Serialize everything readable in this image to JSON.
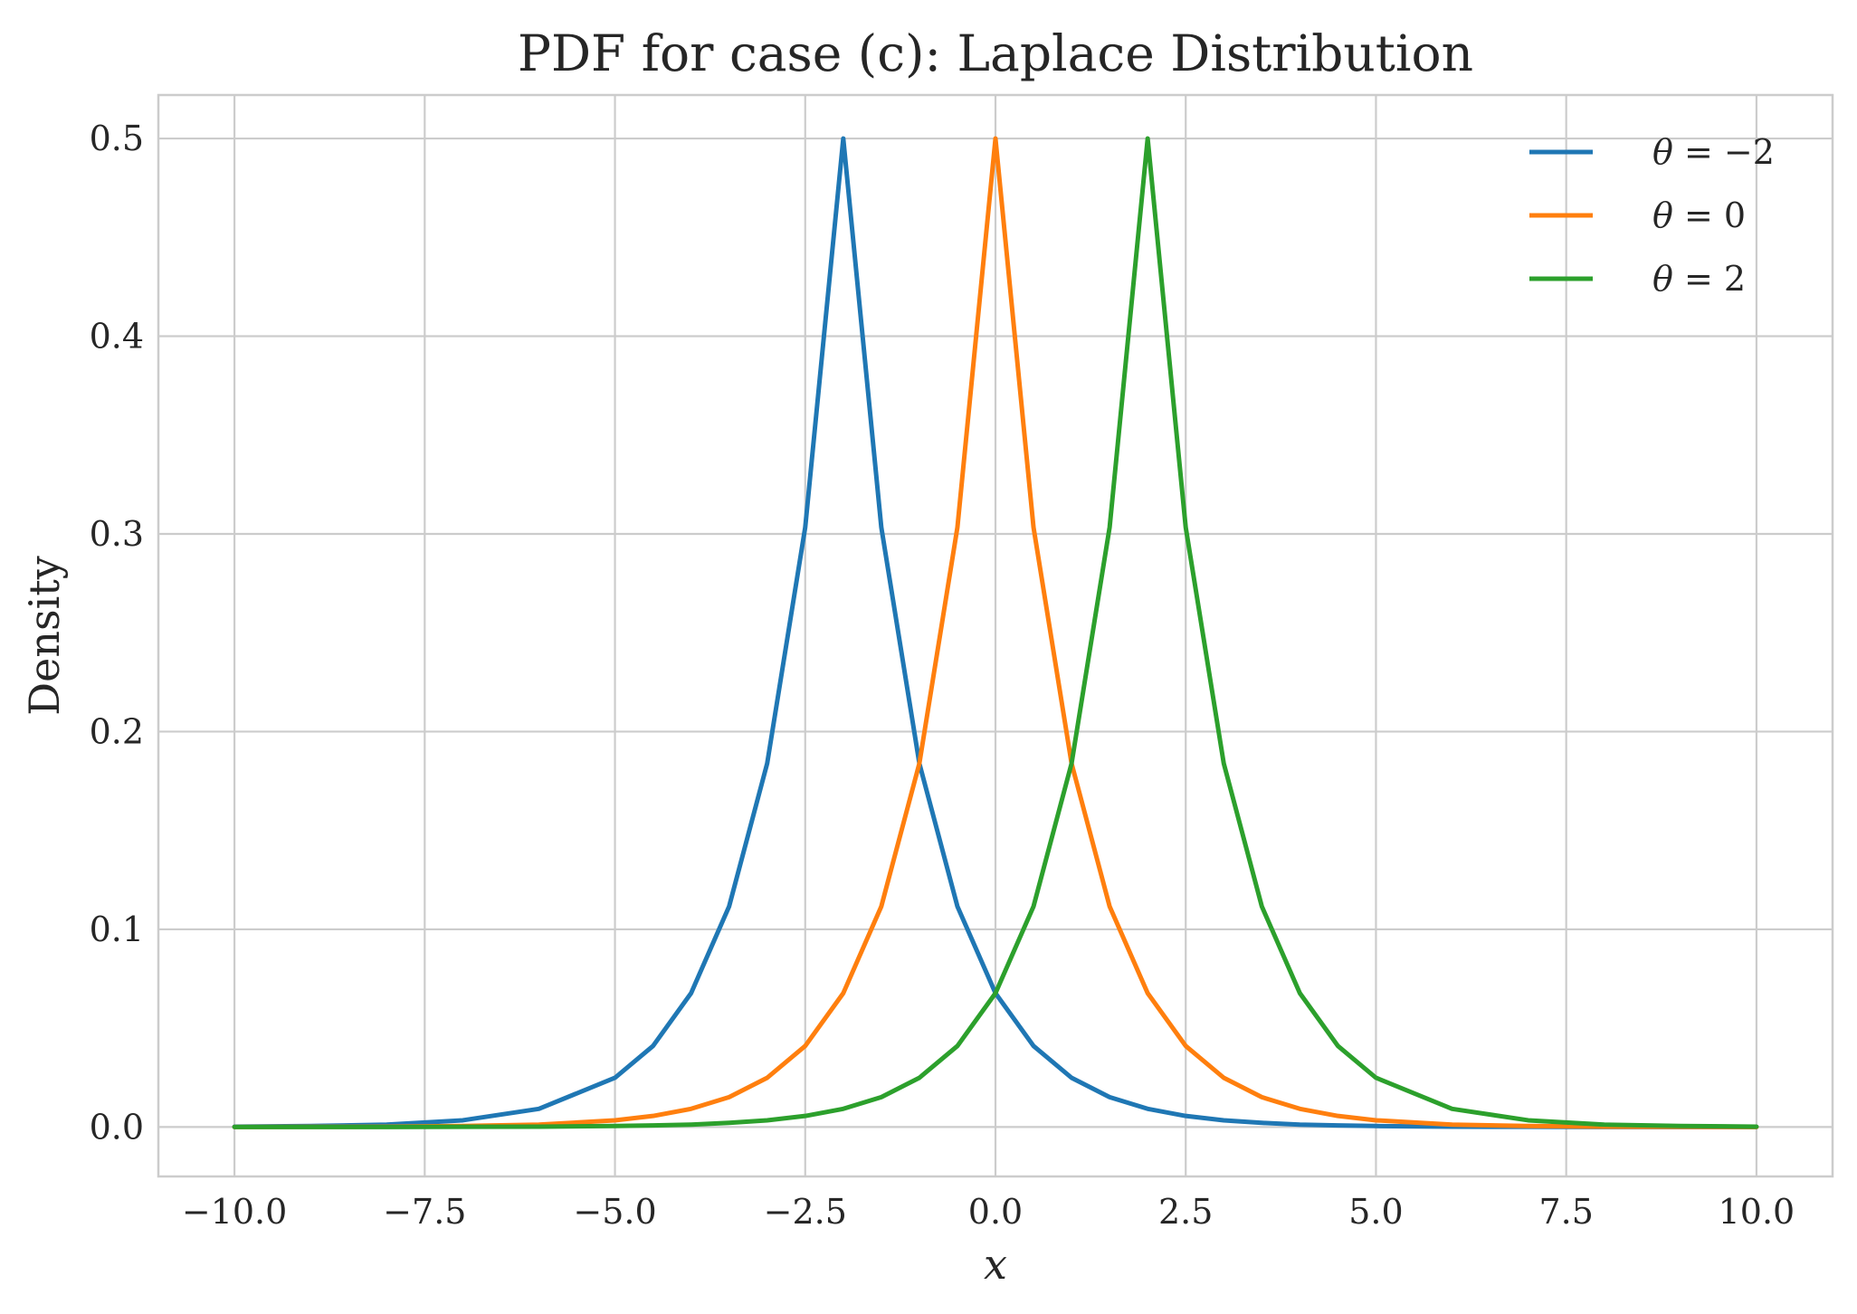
{
  "chart_data": {
    "type": "line",
    "title": "PDF for case (c): Laplace Distribution",
    "xlabel": "x",
    "ylabel": "Density",
    "xlim": [
      -11.0,
      11.0
    ],
    "ylim": [
      -0.025,
      0.522
    ],
    "xticks": [
      -10.0,
      -7.5,
      -5.0,
      -2.5,
      0.0,
      2.5,
      5.0,
      7.5,
      10.0
    ],
    "xtick_labels": [
      "−10.0",
      "−7.5",
      "−5.0",
      "−2.5",
      "0.0",
      "2.5",
      "5.0",
      "7.5",
      "10.0"
    ],
    "yticks": [
      0.0,
      0.1,
      0.2,
      0.3,
      0.4,
      0.5
    ],
    "ytick_labels": [
      "0.0",
      "0.1",
      "0.2",
      "0.3",
      "0.4",
      "0.5"
    ],
    "grid": true,
    "legend_position": "top-right",
    "x": [
      -10.0,
      -9.0,
      -8.0,
      -7.0,
      -6.0,
      -5.0,
      -4.5,
      -4.0,
      -3.5,
      -3.0,
      -2.5,
      -2.0,
      -1.5,
      -1.0,
      -0.5,
      0.0,
      0.5,
      1.0,
      1.5,
      2.0,
      2.5,
      3.0,
      3.5,
      4.0,
      4.5,
      5.0,
      6.0,
      7.0,
      8.0,
      9.0,
      10.0
    ],
    "series": [
      {
        "name": "θ = −2",
        "legend_var": "θ",
        "legend_rest": " = −2",
        "color": "#1f77b4",
        "values": [
          0.0002,
          0.0005,
          0.0012,
          0.0034,
          0.0092,
          0.0249,
          0.041,
          0.0677,
          0.1116,
          0.1839,
          0.3033,
          0.5,
          0.3033,
          0.1839,
          0.1116,
          0.0677,
          0.041,
          0.0249,
          0.0151,
          0.0092,
          0.0056,
          0.0034,
          0.0021,
          0.0012,
          0.0008,
          0.0005,
          0.0002,
          0.0001,
          0.0,
          0.0,
          0.0
        ]
      },
      {
        "name": "θ = 0",
        "legend_var": "θ",
        "legend_rest": " = 0",
        "color": "#ff7f0e",
        "values": [
          0.0,
          0.0001,
          0.0002,
          0.0005,
          0.0012,
          0.0034,
          0.0056,
          0.0092,
          0.0151,
          0.0249,
          0.041,
          0.0677,
          0.1116,
          0.1839,
          0.3033,
          0.5,
          0.3033,
          0.1839,
          0.1116,
          0.0677,
          0.041,
          0.0249,
          0.0151,
          0.0092,
          0.0056,
          0.0034,
          0.0012,
          0.0005,
          0.0002,
          0.0001,
          0.0
        ]
      },
      {
        "name": "θ = 2",
        "legend_var": "θ",
        "legend_rest": " = 2",
        "color": "#2ca02c",
        "values": [
          0.0,
          0.0,
          0.0,
          0.0001,
          0.0002,
          0.0005,
          0.0008,
          0.0012,
          0.0021,
          0.0034,
          0.0056,
          0.0092,
          0.0151,
          0.0249,
          0.041,
          0.0677,
          0.1116,
          0.1839,
          0.3033,
          0.5,
          0.3033,
          0.1839,
          0.1116,
          0.0677,
          0.041,
          0.0249,
          0.0092,
          0.0034,
          0.0012,
          0.0005,
          0.0002
        ]
      }
    ]
  }
}
